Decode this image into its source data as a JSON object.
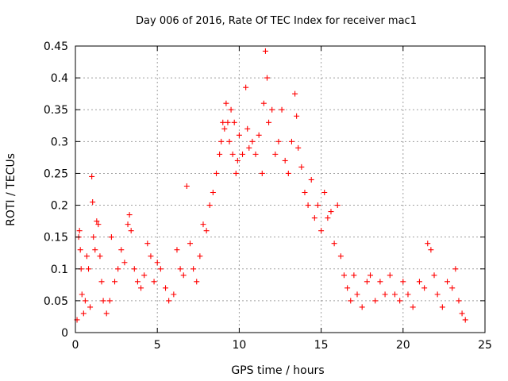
{
  "chart_data": {
    "type": "scatter",
    "title": "Day 006 of 2016, Rate Of TEC Index for receiver mac1",
    "xlabel": "GPS time / hours",
    "ylabel": "ROTI / TECUs",
    "xlim": [
      0,
      25
    ],
    "ylim": [
      0,
      0.45
    ],
    "xticks": [
      0,
      5,
      10,
      15,
      20,
      25
    ],
    "yticks": [
      0,
      0.05,
      0.1,
      0.15,
      0.2,
      0.25,
      0.3,
      0.35,
      0.4,
      0.45
    ],
    "xtick_labels": [
      "0",
      "5",
      "10",
      "15",
      "20",
      "25"
    ],
    "ytick_labels": [
      "0",
      "0.05",
      "0.1",
      "0.15",
      "0.2",
      "0.25",
      "0.3",
      "0.35",
      "0.4",
      "0.45"
    ],
    "grid": true,
    "marker": "+",
    "color": "#ff0000",
    "series": [
      {
        "name": "ROTI",
        "points": [
          [
            0.1,
            0.02
          ],
          [
            0.2,
            0.15
          ],
          [
            0.25,
            0.16
          ],
          [
            0.3,
            0.13
          ],
          [
            0.35,
            0.1
          ],
          [
            0.4,
            0.06
          ],
          [
            0.5,
            0.03
          ],
          [
            0.6,
            0.05
          ],
          [
            0.7,
            0.12
          ],
          [
            0.8,
            0.1
          ],
          [
            0.9,
            0.04
          ],
          [
            1.0,
            0.245
          ],
          [
            1.05,
            0.205
          ],
          [
            1.1,
            0.15
          ],
          [
            1.2,
            0.13
          ],
          [
            1.3,
            0.175
          ],
          [
            1.4,
            0.17
          ],
          [
            1.5,
            0.12
          ],
          [
            1.6,
            0.08
          ],
          [
            1.7,
            0.05
          ],
          [
            1.9,
            0.03
          ],
          [
            2.1,
            0.05
          ],
          [
            2.2,
            0.15
          ],
          [
            2.4,
            0.08
          ],
          [
            2.6,
            0.1
          ],
          [
            2.8,
            0.13
          ],
          [
            3.0,
            0.11
          ],
          [
            3.2,
            0.17
          ],
          [
            3.3,
            0.185
          ],
          [
            3.4,
            0.16
          ],
          [
            3.6,
            0.1
          ],
          [
            3.8,
            0.08
          ],
          [
            4.0,
            0.07
          ],
          [
            4.2,
            0.09
          ],
          [
            4.4,
            0.14
          ],
          [
            4.6,
            0.12
          ],
          [
            4.8,
            0.08
          ],
          [
            5.0,
            0.11
          ],
          [
            5.2,
            0.1
          ],
          [
            5.5,
            0.07
          ],
          [
            5.7,
            0.05
          ],
          [
            6.0,
            0.06
          ],
          [
            6.2,
            0.13
          ],
          [
            6.4,
            0.1
          ],
          [
            6.6,
            0.09
          ],
          [
            6.8,
            0.23
          ],
          [
            7.0,
            0.14
          ],
          [
            7.2,
            0.1
          ],
          [
            7.4,
            0.08
          ],
          [
            7.6,
            0.12
          ],
          [
            7.8,
            0.17
          ],
          [
            8.0,
            0.16
          ],
          [
            8.2,
            0.2
          ],
          [
            8.4,
            0.22
          ],
          [
            8.6,
            0.25
          ],
          [
            8.8,
            0.28
          ],
          [
            8.9,
            0.3
          ],
          [
            9.0,
            0.33
          ],
          [
            9.1,
            0.32
          ],
          [
            9.2,
            0.36
          ],
          [
            9.3,
            0.33
          ],
          [
            9.4,
            0.3
          ],
          [
            9.5,
            0.35
          ],
          [
            9.6,
            0.28
          ],
          [
            9.7,
            0.33
          ],
          [
            9.8,
            0.25
          ],
          [
            9.9,
            0.27
          ],
          [
            10.0,
            0.31
          ],
          [
            10.2,
            0.28
          ],
          [
            10.4,
            0.385
          ],
          [
            10.5,
            0.32
          ],
          [
            10.6,
            0.29
          ],
          [
            10.8,
            0.3
          ],
          [
            11.0,
            0.28
          ],
          [
            11.2,
            0.31
          ],
          [
            11.4,
            0.25
          ],
          [
            11.5,
            0.36
          ],
          [
            11.6,
            0.442
          ],
          [
            11.7,
            0.4
          ],
          [
            11.8,
            0.33
          ],
          [
            12.0,
            0.35
          ],
          [
            12.2,
            0.28
          ],
          [
            12.4,
            0.3
          ],
          [
            12.6,
            0.35
          ],
          [
            12.8,
            0.27
          ],
          [
            13.0,
            0.25
          ],
          [
            13.2,
            0.3
          ],
          [
            13.4,
            0.375
          ],
          [
            13.5,
            0.34
          ],
          [
            13.6,
            0.29
          ],
          [
            13.8,
            0.26
          ],
          [
            14.0,
            0.22
          ],
          [
            14.2,
            0.2
          ],
          [
            14.4,
            0.24
          ],
          [
            14.6,
            0.18
          ],
          [
            14.8,
            0.2
          ],
          [
            15.0,
            0.16
          ],
          [
            15.2,
            0.22
          ],
          [
            15.4,
            0.18
          ],
          [
            15.6,
            0.19
          ],
          [
            15.8,
            0.14
          ],
          [
            16.0,
            0.2
          ],
          [
            16.2,
            0.12
          ],
          [
            16.4,
            0.09
          ],
          [
            16.6,
            0.07
          ],
          [
            16.8,
            0.05
          ],
          [
            17.0,
            0.09
          ],
          [
            17.2,
            0.06
          ],
          [
            17.5,
            0.04
          ],
          [
            17.8,
            0.08
          ],
          [
            18.0,
            0.09
          ],
          [
            18.3,
            0.05
          ],
          [
            18.6,
            0.08
          ],
          [
            18.9,
            0.06
          ],
          [
            19.2,
            0.09
          ],
          [
            19.5,
            0.06
          ],
          [
            19.8,
            0.05
          ],
          [
            20.0,
            0.08
          ],
          [
            20.3,
            0.06
          ],
          [
            20.6,
            0.04
          ],
          [
            21.0,
            0.08
          ],
          [
            21.3,
            0.07
          ],
          [
            21.5,
            0.14
          ],
          [
            21.7,
            0.13
          ],
          [
            21.9,
            0.09
          ],
          [
            22.1,
            0.06
          ],
          [
            22.4,
            0.04
          ],
          [
            22.7,
            0.08
          ],
          [
            23.0,
            0.07
          ],
          [
            23.2,
            0.1
          ],
          [
            23.4,
            0.05
          ],
          [
            23.6,
            0.03
          ],
          [
            23.8,
            0.02
          ]
        ]
      }
    ]
  }
}
